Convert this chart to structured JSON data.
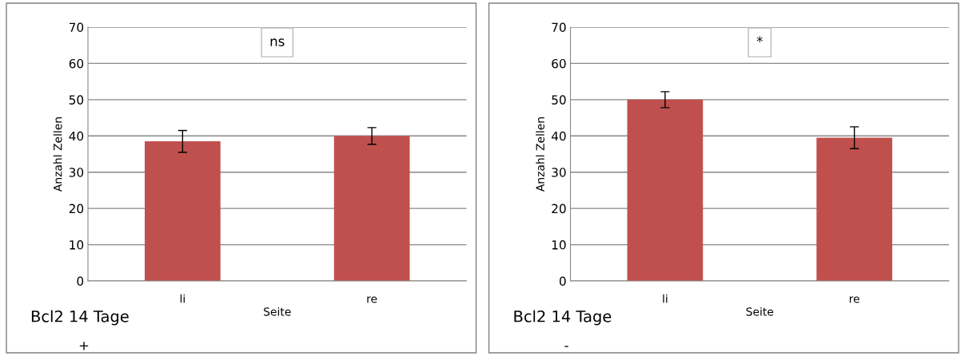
{
  "chart_data": [
    {
      "type": "bar",
      "xlabel": "Seite",
      "ylabel": "Anzahl Zellen",
      "categories": [
        "li",
        "re"
      ],
      "values": [
        38.5,
        40
      ],
      "errors": [
        3,
        2.3
      ],
      "color": "#c0504d",
      "ylim": [
        0,
        70
      ],
      "yticks": [
        0,
        10,
        20,
        30,
        40,
        50,
        60,
        70
      ],
      "grid": "y",
      "annotations": [
        "ns",
        "Bcl2 14 Tage",
        "+"
      ]
    },
    {
      "type": "bar",
      "xlabel": "Seite",
      "ylabel": "Anzahl Zellen",
      "categories": [
        "li",
        "re"
      ],
      "values": [
        50,
        39.5
      ],
      "errors": [
        2.2,
        3
      ],
      "color": "#c0504d",
      "ylim": [
        0,
        70
      ],
      "yticks": [
        0,
        10,
        20,
        30,
        40,
        50,
        60,
        70
      ],
      "grid": "y",
      "annotations": [
        "*",
        "Bcl2 14 Tage",
        "-"
      ]
    }
  ]
}
